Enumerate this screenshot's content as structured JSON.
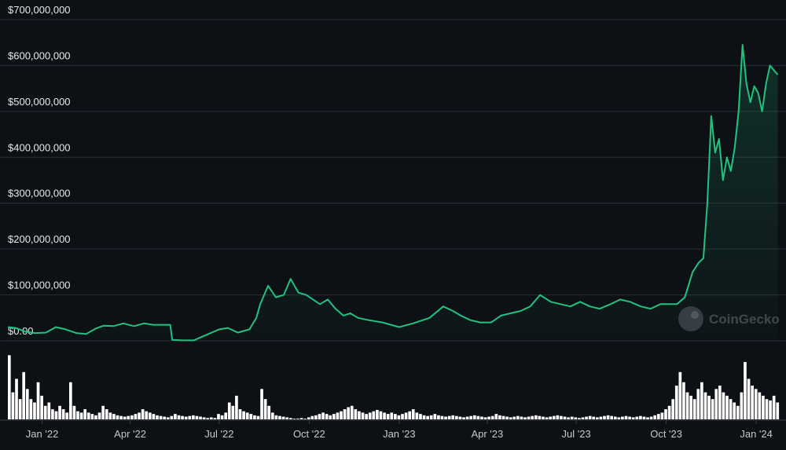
{
  "chart_data": [
    {
      "type": "area",
      "ylim": [
        0,
        700000000
      ],
      "y_ticks": [
        {
          "value": 700000000,
          "label": "$700,000,000"
        },
        {
          "value": 600000000,
          "label": "$600,000,000"
        },
        {
          "value": 500000000,
          "label": "$500,000,000"
        },
        {
          "value": 400000000,
          "label": "$400,000,000"
        },
        {
          "value": 300000000,
          "label": "$300,000,000"
        },
        {
          "value": 200000000,
          "label": "$200,000,000"
        },
        {
          "value": 100000000,
          "label": "$100,000,000"
        },
        {
          "value": 0,
          "label": "$0.00"
        }
      ],
      "xlim": [
        "2021-11-27",
        "2024-01-25"
      ],
      "x_ticks": [
        {
          "value": "2022-01-01",
          "label": "Jan '22"
        },
        {
          "value": "2022-04-01",
          "label": "Apr '22"
        },
        {
          "value": "2022-07-01",
          "label": "Jul '22"
        },
        {
          "value": "2022-10-01",
          "label": "Oct '22"
        },
        {
          "value": "2023-01-01",
          "label": "Jan '23"
        },
        {
          "value": "2023-04-01",
          "label": "Apr '23"
        },
        {
          "value": "2023-07-01",
          "label": "Jul '23"
        },
        {
          "value": "2023-10-01",
          "label": "Oct '23"
        },
        {
          "value": "2024-01-01",
          "label": "Jan '24"
        }
      ],
      "grid": true,
      "colors": {
        "line": "#23c17f",
        "background": "#0d1116",
        "grid": "#2a2f36",
        "volume": "#ffffff"
      },
      "series": [
        {
          "x": [
            "2021-11-27",
            "2021-12-05",
            "2021-12-15",
            "2021-12-25",
            "2022-01-05",
            "2022-01-15",
            "2022-01-25",
            "2022-02-05",
            "2022-02-15",
            "2022-02-25",
            "2022-03-05",
            "2022-03-15",
            "2022-03-25",
            "2022-04-05",
            "2022-04-15",
            "2022-04-25",
            "2022-05-05",
            "2022-05-12",
            "2022-05-14",
            "2022-05-25",
            "2022-06-05",
            "2022-07-01",
            "2022-07-10",
            "2022-07-20",
            "2022-08-01",
            "2022-08-08",
            "2022-08-12",
            "2022-08-20",
            "2022-08-28",
            "2022-09-05",
            "2022-09-12",
            "2022-09-20",
            "2022-09-28",
            "2022-10-05",
            "2022-10-12",
            "2022-10-20",
            "2022-10-28",
            "2022-11-05",
            "2022-11-12",
            "2022-11-20",
            "2022-12-01",
            "2022-12-15",
            "2023-01-01",
            "2023-01-15",
            "2023-02-01",
            "2023-02-15",
            "2023-02-25",
            "2023-03-05",
            "2023-03-15",
            "2023-03-25",
            "2023-04-05",
            "2023-04-15",
            "2023-04-25",
            "2023-05-05",
            "2023-05-15",
            "2023-05-25",
            "2023-06-05",
            "2023-06-15",
            "2023-06-25",
            "2023-07-05",
            "2023-07-15",
            "2023-07-25",
            "2023-08-05",
            "2023-08-15",
            "2023-08-25",
            "2023-09-05",
            "2023-09-15",
            "2023-09-25",
            "2023-10-05",
            "2023-10-12",
            "2023-10-20",
            "2023-10-28",
            "2023-11-03",
            "2023-11-08",
            "2023-11-12",
            "2023-11-16",
            "2023-11-20",
            "2023-11-24",
            "2023-11-28",
            "2023-12-02",
            "2023-12-06",
            "2023-12-10",
            "2023-12-14",
            "2023-12-18",
            "2023-12-22",
            "2023-12-26",
            "2023-12-30",
            "2024-01-03",
            "2024-01-07",
            "2024-01-11",
            "2024-01-15",
            "2024-01-19",
            "2024-01-23"
          ],
          "y": [
            30000000,
            28000000,
            20000000,
            17000000,
            18000000,
            30000000,
            25000000,
            17000000,
            15000000,
            27000000,
            33000000,
            32000000,
            38000000,
            32000000,
            38000000,
            35000000,
            35000000,
            35000000,
            2000000,
            1000000,
            1000000,
            25000000,
            28000000,
            18000000,
            25000000,
            50000000,
            80000000,
            120000000,
            95000000,
            100000000,
            135000000,
            105000000,
            100000000,
            90000000,
            80000000,
            90000000,
            70000000,
            55000000,
            60000000,
            50000000,
            45000000,
            40000000,
            30000000,
            38000000,
            50000000,
            75000000,
            65000000,
            55000000,
            45000000,
            40000000,
            40000000,
            55000000,
            60000000,
            65000000,
            75000000,
            100000000,
            85000000,
            80000000,
            75000000,
            85000000,
            75000000,
            70000000,
            80000000,
            90000000,
            85000000,
            75000000,
            70000000,
            80000000,
            80000000,
            80000000,
            95000000,
            150000000,
            170000000,
            180000000,
            300000000,
            490000000,
            410000000,
            440000000,
            350000000,
            400000000,
            370000000,
            420000000,
            500000000,
            645000000,
            560000000,
            520000000,
            555000000,
            540000000,
            500000000,
            560000000,
            600000000,
            590000000,
            580000000
          ]
        }
      ]
    },
    {
      "type": "bar",
      "ylim": [
        0,
        100
      ],
      "series": [
        {
          "values": [
            95,
            40,
            60,
            30,
            70,
            45,
            30,
            25,
            55,
            35,
            20,
            25,
            15,
            12,
            20,
            15,
            10,
            55,
            20,
            12,
            10,
            15,
            10,
            8,
            6,
            10,
            20,
            15,
            10,
            8,
            6,
            5,
            4,
            5,
            6,
            8,
            10,
            15,
            12,
            10,
            8,
            6,
            5,
            4,
            3,
            5,
            8,
            6,
            5,
            4,
            5,
            6,
            5,
            4,
            3,
            2,
            3,
            2,
            8,
            6,
            10,
            25,
            20,
            35,
            15,
            12,
            10,
            8,
            6,
            5,
            45,
            30,
            20,
            10,
            6,
            5,
            4,
            3,
            2,
            1,
            1,
            2,
            1,
            3,
            5,
            6,
            8,
            10,
            8,
            6,
            8,
            10,
            12,
            15,
            18,
            20,
            15,
            12,
            10,
            8,
            10,
            12,
            14,
            12,
            10,
            8,
            10,
            8,
            6,
            8,
            10,
            12,
            15,
            10,
            8,
            6,
            5,
            6,
            8,
            6,
            5,
            4,
            5,
            6,
            5,
            4,
            3,
            4,
            5,
            6,
            5,
            4,
            3,
            4,
            5,
            8,
            6,
            5,
            4,
            3,
            4,
            5,
            4,
            3,
            4,
            5,
            6,
            5,
            4,
            3,
            4,
            5,
            6,
            5,
            4,
            3,
            4,
            3,
            2,
            3,
            4,
            5,
            4,
            3,
            4,
            5,
            6,
            5,
            4,
            3,
            4,
            5,
            4,
            3,
            4,
            5,
            4,
            3,
            4,
            6,
            8,
            10,
            15,
            20,
            30,
            50,
            70,
            55,
            40,
            35,
            30,
            45,
            55,
            40,
            35,
            30,
            45,
            50,
            40,
            35,
            30,
            25,
            20,
            40,
            85,
            60,
            50,
            45,
            40,
            35,
            30,
            28,
            35,
            25
          ]
        }
      ]
    }
  ],
  "watermark": {
    "text": "CoinGecko"
  }
}
